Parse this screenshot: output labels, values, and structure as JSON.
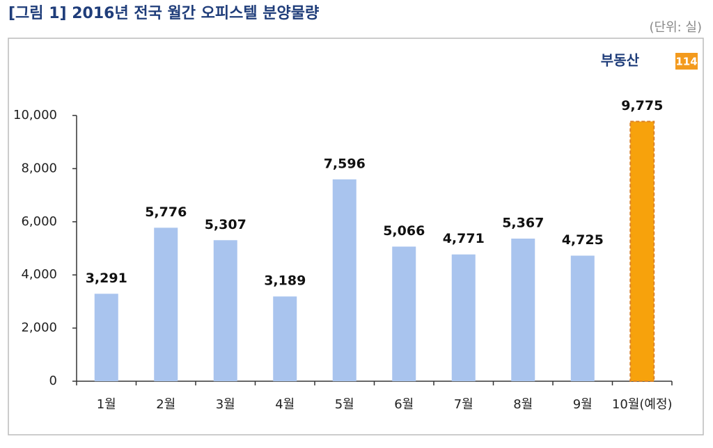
{
  "chart_data": {
    "type": "bar",
    "title": "[그림 1] 2016년 전국 월간 오피스텔 분양물량",
    "unit": "(단위: 실)",
    "categories": [
      "1월",
      "2월",
      "3월",
      "4월",
      "5월",
      "6월",
      "7월",
      "8월",
      "9월",
      "10월(예정)"
    ],
    "values": [
      3291,
      5776,
      5307,
      3189,
      7596,
      5066,
      4771,
      5367,
      4725,
      9775
    ],
    "value_labels": [
      "3,291",
      "5,776",
      "5,307",
      "3,189",
      "7,596",
      "5,066",
      "4,771",
      "5,367",
      "4,725",
      "9,775"
    ],
    "colors": [
      "#a9c4ee",
      "#a9c4ee",
      "#a9c4ee",
      "#a9c4ee",
      "#a9c4ee",
      "#a9c4ee",
      "#a9c4ee",
      "#a9c4ee",
      "#a9c4ee",
      "#f7a20c"
    ],
    "ylim": [
      0,
      10000
    ],
    "yticks": [
      0,
      {
        "value": 2000,
        "label": "2,000"
      },
      {
        "value": 4000,
        "label": "4,000"
      },
      {
        "value": 6000,
        "label": "6,000"
      },
      {
        "value": 8000,
        "label": "8,000"
      },
      {
        "value": 10000,
        "label": "10,000"
      }
    ],
    "grid": false
  },
  "logo": {
    "text": "부동산",
    "badge": "114"
  }
}
